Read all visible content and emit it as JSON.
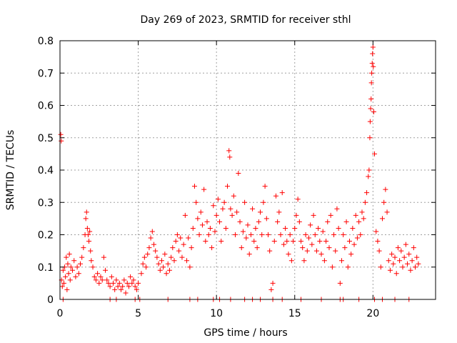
{
  "chart_data": {
    "type": "scatter",
    "title": "Day 269 of 2023, SRMTID for receiver sthl",
    "xlabel": "GPS time / hours",
    "ylabel": "SRMTID / TECUs",
    "xlim": [
      0,
      24
    ],
    "ylim": [
      0,
      0.8
    ],
    "xticks": [
      0,
      5,
      10,
      15,
      20
    ],
    "xtick_labels": [
      "0",
      "5",
      "10",
      "15",
      "20"
    ],
    "yticks": [
      0,
      0.1,
      0.2,
      0.3,
      0.4,
      0.5,
      0.6,
      0.7,
      0.8
    ],
    "ytick_labels": [
      "0",
      "0.1",
      "0.2",
      "0.3",
      "0.4",
      "0.5",
      "0.6",
      "0.7",
      "0.8"
    ],
    "grid": true,
    "marker": "+",
    "series": [
      {
        "name": "SRMTID",
        "color": "#ff0000",
        "points": [
          [
            0.05,
            0.51
          ],
          [
            0.08,
            0.49
          ],
          [
            0.1,
            0.06
          ],
          [
            0.15,
            0.04
          ],
          [
            0.2,
            0.09
          ],
          [
            0.25,
            0.05
          ],
          [
            0.3,
            0.1
          ],
          [
            0.35,
            0.07
          ],
          [
            0.4,
            0.13
          ],
          [
            0.45,
            0.03
          ],
          [
            0.5,
            0.11
          ],
          [
            0.55,
            0.08
          ],
          [
            0.6,
            0.14
          ],
          [
            0.65,
            0.06
          ],
          [
            0.7,
            0.1
          ],
          [
            0.8,
            0.09
          ],
          [
            0.9,
            0.12
          ],
          [
            1.0,
            0.07
          ],
          [
            1.1,
            0.1
          ],
          [
            1.2,
            0.08
          ],
          [
            1.3,
            0.11
          ],
          [
            1.4,
            0.13
          ],
          [
            1.5,
            0.16
          ],
          [
            1.6,
            0.2
          ],
          [
            1.65,
            0.25
          ],
          [
            1.7,
            0.27
          ],
          [
            1.75,
            0.22
          ],
          [
            1.8,
            0.2
          ],
          [
            1.85,
            0.18
          ],
          [
            1.9,
            0.21
          ],
          [
            1.95,
            0.15
          ],
          [
            2.0,
            0.12
          ],
          [
            2.1,
            0.1
          ],
          [
            2.2,
            0.07
          ],
          [
            2.3,
            0.06
          ],
          [
            2.4,
            0.08
          ],
          [
            2.5,
            0.05
          ],
          [
            2.6,
            0.07
          ],
          [
            2.7,
            0.06
          ],
          [
            2.8,
            0.13
          ],
          [
            2.9,
            0.09
          ],
          [
            3.0,
            0.06
          ],
          [
            3.1,
            0.05
          ],
          [
            3.2,
            0.04
          ],
          [
            3.3,
            0.07
          ],
          [
            3.4,
            0.05
          ],
          [
            3.5,
            0.03
          ],
          [
            3.6,
            0.06
          ],
          [
            3.7,
            0.04
          ],
          [
            3.8,
            0.05
          ],
          [
            3.9,
            0.03
          ],
          [
            4.0,
            0.04
          ],
          [
            4.1,
            0.06
          ],
          [
            4.2,
            0.02
          ],
          [
            4.3,
            0.05
          ],
          [
            4.4,
            0.04
          ],
          [
            4.5,
            0.07
          ],
          [
            4.6,
            0.05
          ],
          [
            4.7,
            0.06
          ],
          [
            4.8,
            0.04
          ],
          [
            4.9,
            0.03
          ],
          [
            5.0,
            0.05
          ],
          [
            5.2,
            0.08
          ],
          [
            5.3,
            0.11
          ],
          [
            5.4,
            0.13
          ],
          [
            5.5,
            0.1
          ],
          [
            5.6,
            0.14
          ],
          [
            5.7,
            0.16
          ],
          [
            5.8,
            0.19
          ],
          [
            5.9,
            0.21
          ],
          [
            6.0,
            0.17
          ],
          [
            6.1,
            0.15
          ],
          [
            6.2,
            0.13
          ],
          [
            6.3,
            0.11
          ],
          [
            6.4,
            0.09
          ],
          [
            6.5,
            0.12
          ],
          [
            6.6,
            0.1
          ],
          [
            6.7,
            0.14
          ],
          [
            6.8,
            0.08
          ],
          [
            6.9,
            0.11
          ],
          [
            7.0,
            0.09
          ],
          [
            7.1,
            0.13
          ],
          [
            7.2,
            0.16
          ],
          [
            7.3,
            0.12
          ],
          [
            7.4,
            0.18
          ],
          [
            7.5,
            0.2
          ],
          [
            7.6,
            0.15
          ],
          [
            7.7,
            0.19
          ],
          [
            7.8,
            0.13
          ],
          [
            7.9,
            0.17
          ],
          [
            8.0,
            0.26
          ],
          [
            8.1,
            0.12
          ],
          [
            8.2,
            0.19
          ],
          [
            8.3,
            0.1
          ],
          [
            8.4,
            0.16
          ],
          [
            8.5,
            0.22
          ],
          [
            8.6,
            0.35
          ],
          [
            8.7,
            0.3
          ],
          [
            8.8,
            0.25
          ],
          [
            8.9,
            0.2
          ],
          [
            9.0,
            0.27
          ],
          [
            9.1,
            0.23
          ],
          [
            9.2,
            0.34
          ],
          [
            9.3,
            0.18
          ],
          [
            9.4,
            0.24
          ],
          [
            9.5,
            0.2
          ],
          [
            9.6,
            0.22
          ],
          [
            9.7,
            0.16
          ],
          [
            9.8,
            0.29
          ],
          [
            9.9,
            0.21
          ],
          [
            10.0,
            0.26
          ],
          [
            10.1,
            0.31
          ],
          [
            10.2,
            0.24
          ],
          [
            10.3,
            0.18
          ],
          [
            10.4,
            0.28
          ],
          [
            10.5,
            0.3
          ],
          [
            10.6,
            0.22
          ],
          [
            10.7,
            0.35
          ],
          [
            10.8,
            0.46
          ],
          [
            10.85,
            0.44
          ],
          [
            10.9,
            0.28
          ],
          [
            11.0,
            0.26
          ],
          [
            11.1,
            0.32
          ],
          [
            11.2,
            0.2
          ],
          [
            11.3,
            0.27
          ],
          [
            11.4,
            0.39
          ],
          [
            11.5,
            0.24
          ],
          [
            11.6,
            0.16
          ],
          [
            11.7,
            0.21
          ],
          [
            11.8,
            0.3
          ],
          [
            11.9,
            0.19
          ],
          [
            12.0,
            0.23
          ],
          [
            12.1,
            0.14
          ],
          [
            12.2,
            0.2
          ],
          [
            12.3,
            0.28
          ],
          [
            12.4,
            0.18
          ],
          [
            12.5,
            0.22
          ],
          [
            12.6,
            0.16
          ],
          [
            12.7,
            0.24
          ],
          [
            12.8,
            0.27
          ],
          [
            12.9,
            0.2
          ],
          [
            13.0,
            0.3
          ],
          [
            13.1,
            0.35
          ],
          [
            13.2,
            0.25
          ],
          [
            13.3,
            0.2
          ],
          [
            13.4,
            0.15
          ],
          [
            13.5,
            0.03
          ],
          [
            13.6,
            0.05
          ],
          [
            13.7,
            0.18
          ],
          [
            13.8,
            0.32
          ],
          [
            13.9,
            0.24
          ],
          [
            14.0,
            0.27
          ],
          [
            14.1,
            0.2
          ],
          [
            14.2,
            0.33
          ],
          [
            14.3,
            0.17
          ],
          [
            14.4,
            0.22
          ],
          [
            14.5,
            0.18
          ],
          [
            14.6,
            0.14
          ],
          [
            14.7,
            0.2
          ],
          [
            14.8,
            0.12
          ],
          [
            14.9,
            0.18
          ],
          [
            15.0,
            0.22
          ],
          [
            15.1,
            0.26
          ],
          [
            15.2,
            0.31
          ],
          [
            15.3,
            0.24
          ],
          [
            15.4,
            0.18
          ],
          [
            15.5,
            0.16
          ],
          [
            15.6,
            0.12
          ],
          [
            15.7,
            0.2
          ],
          [
            15.8,
            0.15
          ],
          [
            15.9,
            0.19
          ],
          [
            16.0,
            0.23
          ],
          [
            16.1,
            0.17
          ],
          [
            16.2,
            0.26
          ],
          [
            16.3,
            0.2
          ],
          [
            16.4,
            0.15
          ],
          [
            16.5,
            0.22
          ],
          [
            16.6,
            0.18
          ],
          [
            16.7,
            0.14
          ],
          [
            16.8,
            0.21
          ],
          [
            16.9,
            0.12
          ],
          [
            17.0,
            0.18
          ],
          [
            17.1,
            0.24
          ],
          [
            17.2,
            0.16
          ],
          [
            17.3,
            0.26
          ],
          [
            17.4,
            0.1
          ],
          [
            17.5,
            0.2
          ],
          [
            17.6,
            0.15
          ],
          [
            17.7,
            0.28
          ],
          [
            17.8,
            0.22
          ],
          [
            17.9,
            0.05
          ],
          [
            18.0,
            0.12
          ],
          [
            18.1,
            0.2
          ],
          [
            18.2,
            0.16
          ],
          [
            18.3,
            0.24
          ],
          [
            18.4,
            0.1
          ],
          [
            18.5,
            0.18
          ],
          [
            18.6,
            0.14
          ],
          [
            18.7,
            0.22
          ],
          [
            18.8,
            0.17
          ],
          [
            18.9,
            0.26
          ],
          [
            19.0,
            0.19
          ],
          [
            19.1,
            0.24
          ],
          [
            19.2,
            0.2
          ],
          [
            19.3,
            0.27
          ],
          [
            19.4,
            0.25
          ],
          [
            19.5,
            0.3
          ],
          [
            19.6,
            0.33
          ],
          [
            19.7,
            0.38
          ],
          [
            19.75,
            0.4
          ],
          [
            19.8,
            0.5
          ],
          [
            19.82,
            0.55
          ],
          [
            19.85,
            0.59
          ],
          [
            19.88,
            0.62
          ],
          [
            19.9,
            0.67
          ],
          [
            19.92,
            0.7
          ],
          [
            19.95,
            0.73
          ],
          [
            19.97,
            0.76
          ],
          [
            20.0,
            0.78
          ],
          [
            20.02,
            0.72
          ],
          [
            20.05,
            0.58
          ],
          [
            20.1,
            0.45
          ],
          [
            20.2,
            0.21
          ],
          [
            20.3,
            0.18
          ],
          [
            20.4,
            0.15
          ],
          [
            20.5,
            0.1
          ],
          [
            20.6,
            0.25
          ],
          [
            20.7,
            0.3
          ],
          [
            20.8,
            0.34
          ],
          [
            20.9,
            0.27
          ],
          [
            21.0,
            0.12
          ],
          [
            21.1,
            0.09
          ],
          [
            21.2,
            0.14
          ],
          [
            21.3,
            0.11
          ],
          [
            21.4,
            0.13
          ],
          [
            21.5,
            0.08
          ],
          [
            21.6,
            0.16
          ],
          [
            21.7,
            0.12
          ],
          [
            21.8,
            0.15
          ],
          [
            21.9,
            0.1
          ],
          [
            22.0,
            0.13
          ],
          [
            22.1,
            0.17
          ],
          [
            22.2,
            0.11
          ],
          [
            22.3,
            0.14
          ],
          [
            22.4,
            0.09
          ],
          [
            22.5,
            0.12
          ],
          [
            22.6,
            0.16
          ],
          [
            22.7,
            0.1
          ],
          [
            22.8,
            0.13
          ],
          [
            22.9,
            0.11
          ],
          [
            0.2,
            0.0
          ],
          [
            3.2,
            0.0
          ],
          [
            3.6,
            0.0
          ],
          [
            4.8,
            0.0
          ],
          [
            5.1,
            0.0
          ],
          [
            6.9,
            0.0
          ],
          [
            8.3,
            0.0
          ],
          [
            8.8,
            0.0
          ],
          [
            9.8,
            0.0
          ],
          [
            10.2,
            0.0
          ],
          [
            10.9,
            0.0
          ],
          [
            11.8,
            0.0
          ],
          [
            12.3,
            0.0
          ],
          [
            12.8,
            0.0
          ],
          [
            13.6,
            0.0
          ],
          [
            14.2,
            0.0
          ],
          [
            15.4,
            0.0
          ],
          [
            16.7,
            0.0
          ],
          [
            17.9,
            0.0
          ],
          [
            18.1,
            0.0
          ],
          [
            19.1,
            0.0
          ],
          [
            20.1,
            0.0
          ],
          [
            20.6,
            0.0
          ],
          [
            21.4,
            0.0
          ],
          [
            22.3,
            0.0
          ]
        ]
      }
    ]
  }
}
